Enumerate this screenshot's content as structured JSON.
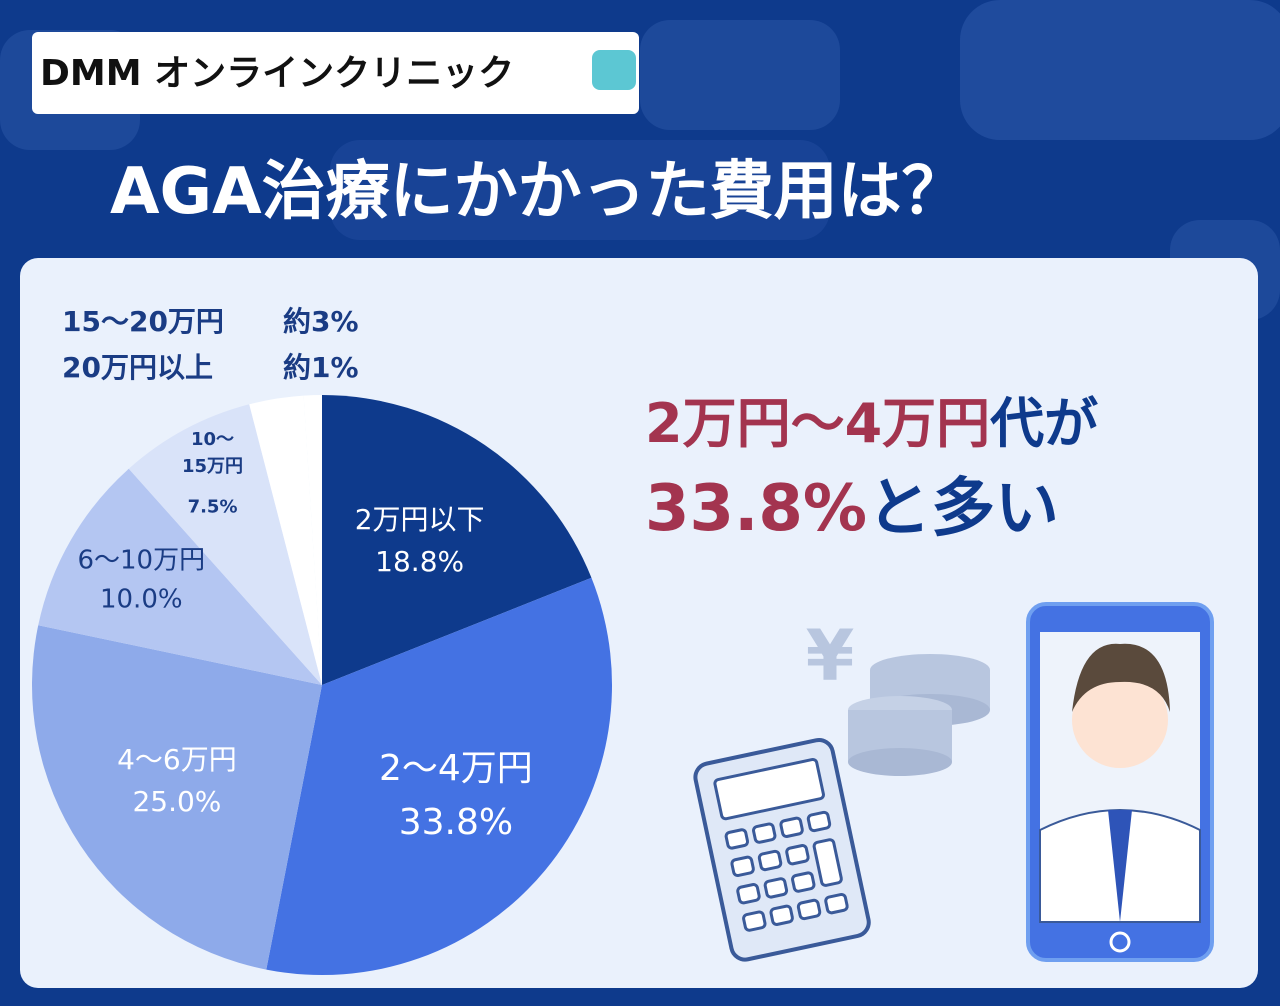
{
  "header": {
    "logo": "DMM オンラインクリニック",
    "title": "AGA治療にかかった費用は？"
  },
  "headline": {
    "line1": [
      {
        "text": "2万円～4万円",
        "color": "#a3344f"
      },
      {
        "text": "代が",
        "color": "#0e3a8c"
      }
    ],
    "line2": [
      {
        "text": "33.8%",
        "color": "#a3344f"
      },
      {
        "text": "と多い",
        "color": "#0e3a8c"
      }
    ]
  },
  "chart_data": {
    "type": "pie",
    "categories": [
      "2万円以下",
      "2～4万円",
      "4～6万円",
      "6～10万円",
      "10～\n15万円",
      "15～20万円",
      "20万円以上"
    ],
    "values": [
      18.8,
      33.8,
      25.0,
      10.0,
      7.5,
      3,
      1
    ],
    "value_labels": [
      "18.8%",
      "33.8%",
      "25.0%",
      "10.0%",
      "7.5%",
      "約3%",
      "約1%"
    ],
    "colors": [
      "#0e3a8c",
      "#4472e3",
      "#8eaaea",
      "#b4c6f2",
      "#d9e3f9",
      "#ffffff",
      "#ffffff"
    ]
  }
}
